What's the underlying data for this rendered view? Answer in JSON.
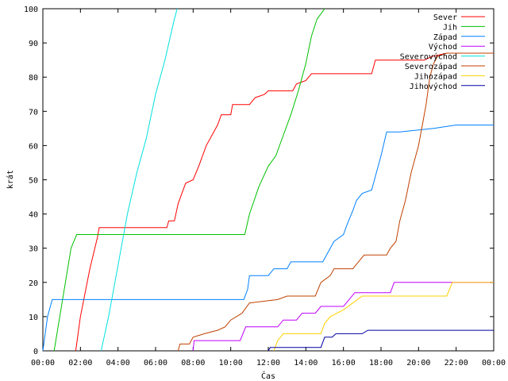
{
  "chart_data": {
    "type": "line",
    "title": "",
    "xlabel": "Čas",
    "ylabel": "krát",
    "xlim": [
      0,
      24
    ],
    "ylim": [
      0,
      100
    ],
    "x_unit": "hours of day",
    "x_ticks": [
      0,
      2,
      4,
      6,
      8,
      10,
      12,
      14,
      16,
      18,
      20,
      22,
      24
    ],
    "x_tick_labels": [
      "00:00",
      "02:00",
      "04:00",
      "06:00",
      "08:00",
      "10:00",
      "12:00",
      "14:00",
      "16:00",
      "18:00",
      "20:00",
      "22:00",
      "00:00"
    ],
    "y_ticks": [
      0,
      10,
      20,
      30,
      40,
      50,
      60,
      70,
      80,
      90,
      100
    ],
    "y_tick_labels": [
      "0",
      "10",
      "20",
      "30",
      "40",
      "50",
      "60",
      "70",
      "80",
      "90",
      "100"
    ],
    "grid": false,
    "legend_position": "top-right",
    "series": [
      {
        "name": "Sever",
        "color": "#ff0000",
        "points": [
          [
            1.75,
            0
          ],
          [
            2.0,
            10
          ],
          [
            2.5,
            24
          ],
          [
            2.9,
            33
          ],
          [
            3.0,
            36
          ],
          [
            6.0,
            36
          ],
          [
            6.6,
            36
          ],
          [
            6.7,
            38
          ],
          [
            7.0,
            38
          ],
          [
            7.2,
            43
          ],
          [
            7.4,
            46
          ],
          [
            7.6,
            49
          ],
          [
            8.0,
            50
          ],
          [
            8.3,
            54
          ],
          [
            8.7,
            60
          ],
          [
            9.0,
            63
          ],
          [
            9.3,
            66
          ],
          [
            9.5,
            69
          ],
          [
            10.0,
            69
          ],
          [
            10.1,
            72
          ],
          [
            11.0,
            72
          ],
          [
            11.3,
            74
          ],
          [
            11.8,
            75
          ],
          [
            12.0,
            76
          ],
          [
            13.3,
            76
          ],
          [
            13.5,
            78
          ],
          [
            14.0,
            79
          ],
          [
            14.3,
            81
          ],
          [
            17.5,
            81
          ],
          [
            17.7,
            85
          ],
          [
            20.3,
            85
          ],
          [
            20.7,
            86
          ],
          [
            21.5,
            87
          ],
          [
            24.0,
            87
          ]
        ]
      },
      {
        "name": "Jih",
        "color": "#00c000",
        "points": [
          [
            0.6,
            0
          ],
          [
            0.9,
            10
          ],
          [
            1.2,
            20
          ],
          [
            1.5,
            30
          ],
          [
            1.8,
            34
          ],
          [
            10.75,
            34
          ],
          [
            11.0,
            40
          ],
          [
            11.5,
            48
          ],
          [
            12.0,
            54
          ],
          [
            12.4,
            57
          ],
          [
            12.8,
            63
          ],
          [
            13.2,
            69
          ],
          [
            13.6,
            76
          ],
          [
            14.0,
            84
          ],
          [
            14.3,
            92
          ],
          [
            14.6,
            97
          ],
          [
            15.0,
            100
          ]
        ]
      },
      {
        "name": "Západ",
        "color": "#0080ff",
        "points": [
          [
            0.0,
            0
          ],
          [
            0.25,
            10
          ],
          [
            0.5,
            15
          ],
          [
            10.7,
            15
          ],
          [
            10.9,
            18
          ],
          [
            11.0,
            22
          ],
          [
            12.0,
            22
          ],
          [
            12.3,
            24
          ],
          [
            13.0,
            24
          ],
          [
            13.2,
            26
          ],
          [
            14.9,
            26
          ],
          [
            15.1,
            28
          ],
          [
            15.5,
            32
          ],
          [
            16.0,
            34
          ],
          [
            16.2,
            37
          ],
          [
            16.5,
            41
          ],
          [
            16.7,
            44
          ],
          [
            17.0,
            46
          ],
          [
            17.5,
            47
          ],
          [
            17.7,
            51
          ],
          [
            18.0,
            57
          ],
          [
            18.3,
            64
          ],
          [
            19.0,
            64
          ],
          [
            20.8,
            65
          ],
          [
            22.0,
            66
          ],
          [
            24.0,
            66
          ]
        ]
      },
      {
        "name": "Východ",
        "color": "#c000ff",
        "points": [
          [
            8.0,
            0
          ],
          [
            8.05,
            3
          ],
          [
            10.5,
            3
          ],
          [
            10.8,
            7
          ],
          [
            12.5,
            7
          ],
          [
            12.8,
            9
          ],
          [
            13.5,
            9
          ],
          [
            13.8,
            11
          ],
          [
            14.5,
            11
          ],
          [
            14.8,
            13
          ],
          [
            16.0,
            13
          ],
          [
            16.3,
            15
          ],
          [
            16.6,
            17
          ],
          [
            18.5,
            17
          ],
          [
            18.7,
            20
          ],
          [
            24.0,
            20
          ]
        ]
      },
      {
        "name": "Severovýchod",
        "color": "#00e0e0",
        "points": [
          [
            3.1,
            0
          ],
          [
            3.5,
            10
          ],
          [
            4.0,
            25
          ],
          [
            4.5,
            40
          ],
          [
            5.0,
            52
          ],
          [
            5.5,
            62
          ],
          [
            6.0,
            75
          ],
          [
            6.5,
            85
          ],
          [
            7.0,
            97
          ],
          [
            7.15,
            100
          ]
        ]
      },
      {
        "name": "Severozápad",
        "color": "#c04000",
        "points": [
          [
            7.2,
            0
          ],
          [
            7.3,
            2
          ],
          [
            7.8,
            2
          ],
          [
            8.0,
            4
          ],
          [
            8.6,
            5
          ],
          [
            9.3,
            6
          ],
          [
            9.7,
            7
          ],
          [
            10.0,
            9
          ],
          [
            10.3,
            10
          ],
          [
            10.6,
            11
          ],
          [
            11.0,
            14
          ],
          [
            12.5,
            15
          ],
          [
            13.0,
            16
          ],
          [
            14.5,
            16
          ],
          [
            14.8,
            20
          ],
          [
            15.3,
            22
          ],
          [
            15.5,
            24
          ],
          [
            16.5,
            24
          ],
          [
            16.8,
            26
          ],
          [
            17.1,
            28
          ],
          [
            18.3,
            28
          ],
          [
            18.5,
            30
          ],
          [
            18.8,
            32
          ],
          [
            19.0,
            38
          ],
          [
            19.3,
            44
          ],
          [
            19.6,
            52
          ],
          [
            20.0,
            60
          ],
          [
            20.2,
            66
          ],
          [
            20.4,
            72
          ],
          [
            20.6,
            80
          ],
          [
            20.8,
            84
          ],
          [
            21.0,
            86
          ],
          [
            21.5,
            87
          ],
          [
            24.0,
            87
          ]
        ]
      },
      {
        "name": "Jihozápad",
        "color": "#ffd000",
        "points": [
          [
            12.3,
            0
          ],
          [
            12.5,
            3
          ],
          [
            12.8,
            5
          ],
          [
            14.8,
            5
          ],
          [
            15.0,
            8
          ],
          [
            15.3,
            10
          ],
          [
            16.0,
            12
          ],
          [
            16.5,
            14
          ],
          [
            17.0,
            16
          ],
          [
            21.5,
            16
          ],
          [
            21.8,
            20
          ],
          [
            24.0,
            20
          ]
        ]
      },
      {
        "name": "Jihovýchod",
        "color": "#0000a0",
        "points": [
          [
            12.0,
            0
          ],
          [
            12.1,
            1
          ],
          [
            14.8,
            1
          ],
          [
            15.0,
            4
          ],
          [
            15.4,
            4
          ],
          [
            15.6,
            5
          ],
          [
            17.0,
            5
          ],
          [
            17.3,
            6
          ],
          [
            24.0,
            6
          ]
        ]
      }
    ]
  }
}
